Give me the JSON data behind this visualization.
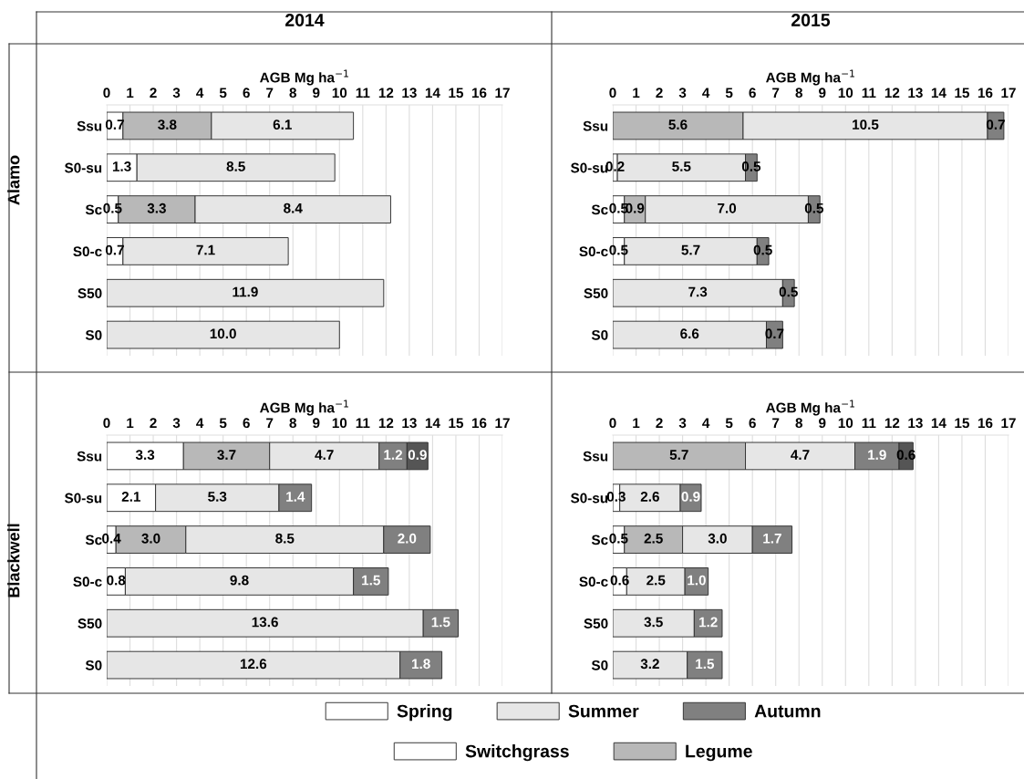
{
  "chart_data": [
    {
      "type": "bar",
      "orientation": "horizontal",
      "stacked": true,
      "title": "2014",
      "ylabel": "Alamo",
      "xlabel": "AGB Mg ha$^{−1}$",
      "categories": [
        "Ssu",
        "S0-su",
        "Sc",
        "S0-c",
        "S50",
        "S0"
      ],
      "xlim": [
        0,
        17
      ],
      "xticks": [
        0,
        1,
        2,
        3,
        4,
        5,
        6,
        7,
        8,
        9,
        10,
        11,
        12,
        13,
        14,
        15,
        16,
        17
      ],
      "grid": "x",
      "series": [
        {
          "color": "#ffffff",
          "values": [
            0.7,
            1.3,
            0.5,
            0.7,
            null,
            null
          ],
          "value_labels": [
            "0.7",
            "1.3",
            "0.5",
            "0.7",
            null,
            null
          ]
        },
        {
          "color": "#b8b8b8",
          "values": [
            3.8,
            null,
            3.3,
            null,
            null,
            null
          ],
          "value_labels": [
            "3.8",
            null,
            "3.3",
            null,
            null,
            null
          ]
        },
        {
          "color": "#e6e6e6",
          "values": [
            6.1,
            8.5,
            8.4,
            7.1,
            11.9,
            10.0
          ],
          "value_labels": [
            "6.1",
            "8.5",
            "8.4",
            "7.1",
            "11.9",
            "10.0"
          ]
        }
      ]
    },
    {
      "type": "bar",
      "orientation": "horizontal",
      "stacked": true,
      "title": "2015",
      "xlabel": "AGB Mg ha$^{−1}$",
      "categories": [
        "Ssu",
        "S0-su",
        "Sc",
        "S0-c",
        "S50",
        "S0"
      ],
      "xlim": [
        0,
        17
      ],
      "xticks": [
        0,
        1,
        2,
        3,
        4,
        5,
        6,
        7,
        8,
        9,
        10,
        11,
        12,
        13,
        14,
        15,
        16,
        17
      ],
      "grid": "x",
      "series": [
        {
          "color": "#ffffff",
          "values": [
            null,
            0.2,
            0.5,
            0.5,
            null,
            null
          ],
          "value_labels": [
            null,
            "0.2",
            "0.5",
            "0.5",
            null,
            null
          ]
        },
        {
          "color": "#b8b8b8",
          "values": [
            5.6,
            null,
            0.9,
            null,
            null,
            null
          ],
          "value_labels": [
            "5.6",
            null,
            "0.9",
            null,
            null,
            null
          ]
        },
        {
          "color": "#e6e6e6",
          "values": [
            10.5,
            5.5,
            7.0,
            5.7,
            7.3,
            6.6
          ],
          "value_labels": [
            "10.5",
            "5.5",
            "7.0",
            "5.7",
            "7.3",
            "6.6"
          ]
        },
        {
          "color": "#808080",
          "values": [
            0.7,
            0.5,
            0.5,
            0.5,
            0.5,
            0.7
          ],
          "value_labels": [
            "0.7",
            "0.5",
            "0.5",
            "0.5",
            "0.5",
            "0.7"
          ]
        }
      ]
    },
    {
      "type": "bar",
      "orientation": "horizontal",
      "stacked": true,
      "ylabel": "Blackwell",
      "xlabel": "AGB Mg ha$^{−1}$",
      "categories": [
        "Ssu",
        "S0-su",
        "Sc",
        "S0-c",
        "S50",
        "S0"
      ],
      "xlim": [
        0,
        17
      ],
      "xticks": [
        0,
        1,
        2,
        3,
        4,
        5,
        6,
        7,
        8,
        9,
        10,
        11,
        12,
        13,
        14,
        15,
        16,
        17
      ],
      "grid": "x",
      "legend": "bottom",
      "series": [
        {
          "name": "Spring",
          "color": "#ffffff",
          "values": [
            3.3,
            2.1,
            0.4,
            0.8,
            null,
            null
          ],
          "value_labels": [
            "3.3",
            "2.1",
            "0.4",
            "0.8",
            null,
            null
          ]
        },
        {
          "color": "#b8b8b8",
          "values": [
            3.7,
            null,
            3.0,
            null,
            null,
            null
          ],
          "value_labels": [
            "3.7",
            null,
            "3.0",
            null,
            null,
            null
          ]
        },
        {
          "name": "Summer",
          "color": "#e6e6e6",
          "values": [
            4.7,
            5.3,
            8.5,
            9.8,
            13.6,
            12.6
          ],
          "value_labels": [
            "4.7",
            "5.3",
            "8.5",
            "9.8",
            "13.6",
            "12.6"
          ]
        },
        {
          "name": "Autumn",
          "color": "#808080",
          "values": [
            1.2,
            1.4,
            2.0,
            1.5,
            1.5,
            1.8
          ],
          "value_labels": [
            "1.2",
            "1.4",
            "2.0",
            "1.5",
            "1.5",
            "1.8"
          ]
        },
        {
          "color": "#555555",
          "values": [
            0.9,
            null,
            null,
            null,
            null,
            null
          ],
          "value_labels": [
            "0.9",
            null,
            null,
            null,
            null,
            null
          ]
        }
      ]
    },
    {
      "type": "bar",
      "orientation": "horizontal",
      "stacked": true,
      "xlabel": "AGB Mg ha$^{−1}$",
      "categories": [
        "Ssu",
        "S0-su",
        "Sc",
        "S0-c",
        "S50",
        "S0"
      ],
      "xlim": [
        0,
        17
      ],
      "xticks": [
        0,
        1,
        2,
        3,
        4,
        5,
        6,
        7,
        8,
        9,
        10,
        11,
        12,
        13,
        14,
        15,
        16,
        17
      ],
      "grid": "x",
      "legend": "bottom",
      "series": [
        {
          "name": "Switchgrass",
          "color": "#ffffff",
          "values": [
            null,
            0.3,
            0.5,
            0.6,
            null,
            null
          ],
          "value_labels": [
            null,
            "0.3",
            "0.5",
            "0.6",
            null,
            null
          ]
        },
        {
          "name": "Legume",
          "color": "#b8b8b8",
          "values": [
            5.7,
            null,
            2.5,
            null,
            null,
            null
          ],
          "value_labels": [
            "5.7",
            null,
            "2.5",
            null,
            null,
            null
          ]
        },
        {
          "color": "#e6e6e6",
          "values": [
            4.7,
            2.6,
            3.0,
            2.5,
            3.5,
            3.2
          ],
          "value_labels": [
            "4.7",
            "2.6",
            "3.0",
            "2.5",
            "3.5",
            "3.2"
          ]
        },
        {
          "color": "#808080",
          "values": [
            1.9,
            0.9,
            1.7,
            1.0,
            1.2,
            1.5
          ],
          "value_labels": [
            "1.9",
            "0.9",
            "1.7",
            "1.0",
            "1.2",
            "1.5"
          ]
        },
        {
          "color": "#555555",
          "values": [
            0.6,
            null,
            null,
            null,
            null,
            null
          ],
          "value_labels": [
            "0.6",
            null,
            null,
            null,
            null,
            null
          ]
        }
      ]
    }
  ]
}
